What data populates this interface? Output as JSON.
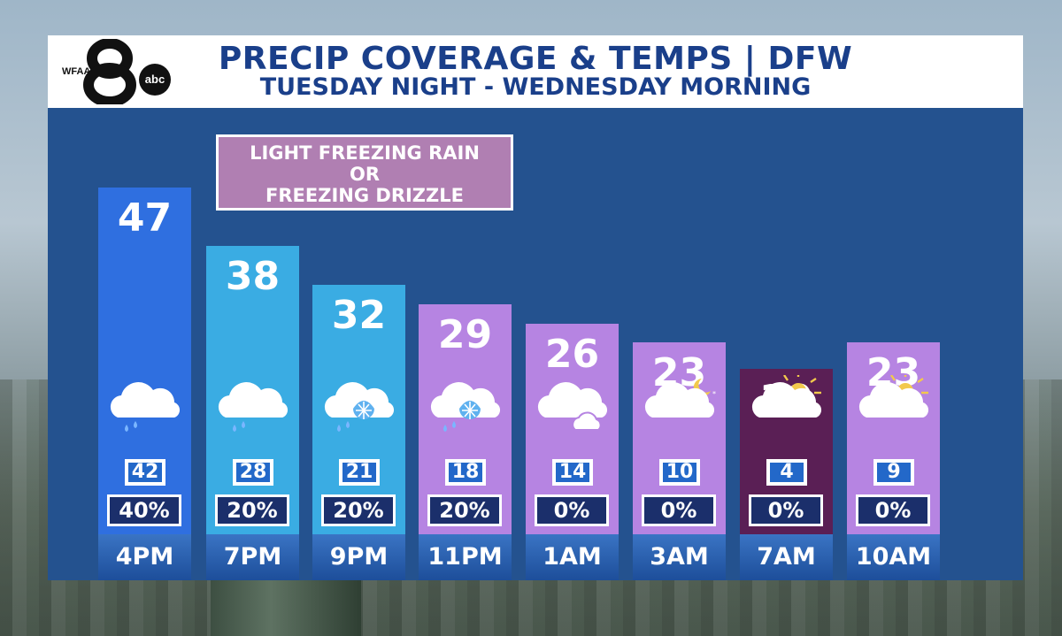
{
  "header": {
    "title": "PRECIP COVERAGE & TEMPS | DFW",
    "subtitle": "TUESDAY NIGHT - WEDNESDAY MORNING",
    "logo_text": "WFAA",
    "logo_number": "8",
    "logo_network": "abc"
  },
  "callout": {
    "line1": "LIGHT FREEZING RAIN",
    "line2": "OR",
    "line3": "FREEZING DRIZZLE"
  },
  "colors": {
    "panel": "#24528f",
    "title": "#1a3f8a",
    "callout": "#b07fb2"
  },
  "chart_data": {
    "type": "bar",
    "title": "PRECIP COVERAGE & TEMPS | DFW",
    "subtitle": "TUESDAY NIGHT - WEDNESDAY MORNING",
    "categories": [
      "4PM",
      "7PM",
      "9PM",
      "11PM",
      "1AM",
      "3AM",
      "7AM",
      "10AM"
    ],
    "series": [
      {
        "values": [
          47,
          38,
          32,
          29,
          26,
          23,
          19,
          23
        ]
      },
      {
        "values": [
          42,
          28,
          21,
          18,
          14,
          10,
          4,
          9
        ]
      },
      {
        "values": [
          "40%",
          "20%",
          "20%",
          "20%",
          "0%",
          "0%",
          "0%",
          "0%"
        ]
      }
    ],
    "bar_colors": [
      "#2f6fe0",
      "#3aace3",
      "#3aace3",
      "#b684e2",
      "#b684e2",
      "#b684e2",
      "#5a1f55",
      "#b684e2"
    ],
    "icons": [
      "rain-cloud-icon",
      "rain-cloud-icon",
      "sleet-snow-cloud-icon",
      "sleet-snow-cloud-icon",
      "cloudy-icon",
      "partly-cloudy-night-icon",
      "partly-sunny-icon",
      "partly-sunny-icon"
    ]
  }
}
